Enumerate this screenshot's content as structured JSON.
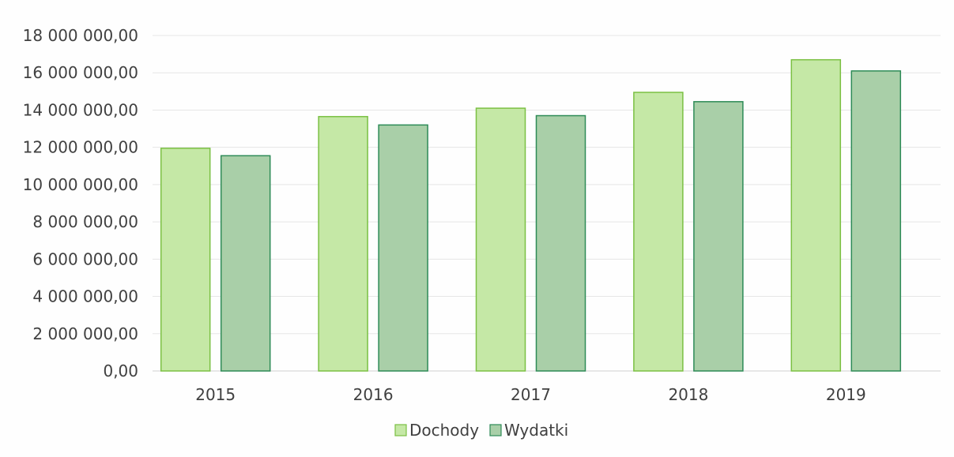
{
  "chart_data": {
    "type": "bar",
    "title": "",
    "xlabel": "",
    "ylabel": "",
    "categories": [
      "2015",
      "2016",
      "2017",
      "2018",
      "2019"
    ],
    "series": [
      {
        "name": "Dochody",
        "values": [
          11950000,
          13650000,
          14100000,
          14950000,
          16700000
        ],
        "color": "#c5e8a6",
        "stroke": "#7bc043"
      },
      {
        "name": "Wydatki",
        "values": [
          11550000,
          13200000,
          13700000,
          14450000,
          16100000
        ],
        "color": "#a9cfa8",
        "stroke": "#2e8b57"
      }
    ],
    "ylim": [
      0,
      18000000
    ],
    "yticks": [
      0,
      2000000,
      4000000,
      6000000,
      8000000,
      10000000,
      12000000,
      14000000,
      16000000,
      18000000
    ],
    "ytick_labels": [
      "0,00",
      "2 000 000,00",
      "4 000 000,00",
      "6 000 000,00",
      "8 000 000,00",
      "10 000 000,00",
      "12 000 000,00",
      "14 000 000,00",
      "16 000 000,00",
      "18 000 000,00"
    ],
    "grid": true,
    "grid_color": "#e6e6e6",
    "legend_position": "bottom-center"
  }
}
